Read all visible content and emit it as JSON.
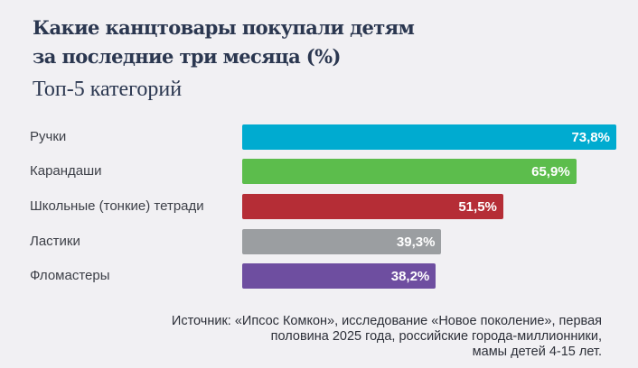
{
  "chart_data": {
    "type": "bar",
    "orientation": "horizontal",
    "title": "Какие канцтовары покупали детям за последние три месяца (%)",
    "title_lines": [
      "Какие канцтовары покупали детям",
      "за последние три месяца (%)"
    ],
    "subtitle": "Топ-5 категорий",
    "categories": [
      "Ручки",
      "Карандаши",
      "Школьные (тонкие) тетради",
      "Ластики",
      "Фломастеры"
    ],
    "values": [
      73.8,
      65.9,
      51.5,
      39.3,
      38.2
    ],
    "value_labels": [
      "73,8%",
      "65,9%",
      "51,5%",
      "39,3%",
      "38,2%"
    ],
    "colors": [
      "#00abd0",
      "#5cbd4c",
      "#b52d36",
      "#9b9ea1",
      "#6e4ea0"
    ],
    "xlim": [
      0,
      73.8
    ],
    "grid": false,
    "legend": "none"
  },
  "source": [
    "Источник: «Ипсос Комкон», исследование «Новое поколение», первая",
    "половина 2025 года, российские города-миллионники,",
    "мамы детей 4-15 лет."
  ]
}
